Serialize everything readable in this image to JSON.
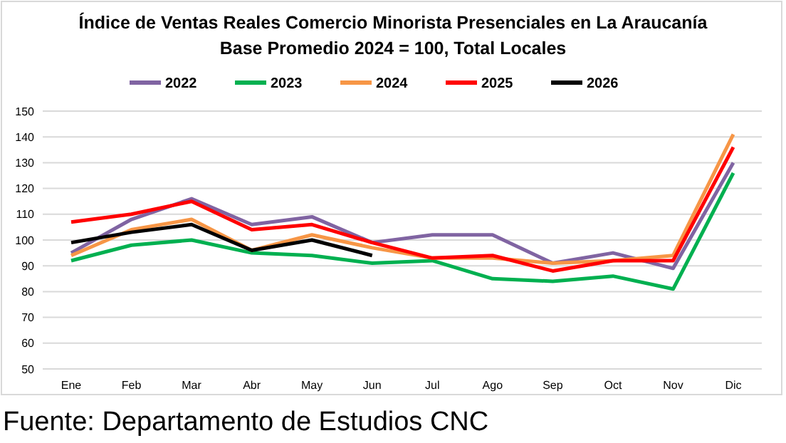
{
  "chart_data": {
    "type": "line",
    "title": "Índice de Ventas Reales Comercio Minorista Presenciales en La Araucanía",
    "subtitle": "Base Promedio 2024 = 100, Total Locales",
    "categories": [
      "Ene",
      "Feb",
      "Mar",
      "Abr",
      "May",
      "Jun",
      "Jul",
      "Ago",
      "Sep",
      "Oct",
      "Nov",
      "Dic"
    ],
    "series": [
      {
        "name": "2022",
        "color": "#8064a2",
        "values": [
          95,
          108,
          116,
          106,
          109,
          99,
          102,
          102,
          91,
          95,
          89,
          130
        ]
      },
      {
        "name": "2023",
        "color": "#00b050",
        "values": [
          92,
          98,
          100,
          95,
          94,
          91,
          92,
          85,
          84,
          86,
          81,
          126
        ]
      },
      {
        "name": "2024",
        "color": "#f79646",
        "values": [
          94,
          104,
          108,
          96,
          102,
          97,
          93,
          93,
          91,
          92,
          94,
          141
        ]
      },
      {
        "name": "2025",
        "color": "#ff0000",
        "values": [
          107,
          110,
          115,
          104,
          106,
          99,
          93,
          94,
          88,
          92,
          92,
          136
        ]
      },
      {
        "name": "2026",
        "color": "#000000",
        "values": [
          99,
          103,
          106,
          96,
          100,
          94,
          null,
          null,
          null,
          null,
          null,
          null
        ]
      }
    ],
    "ylim": [
      50,
      150
    ],
    "yticks": [
      50,
      60,
      70,
      80,
      90,
      100,
      110,
      120,
      130,
      140,
      150
    ],
    "grid": "y",
    "legend": "top",
    "line_style": "solid",
    "marker": "none",
    "annotations": [
      "Fuente: Departamento de Estudios CNC"
    ]
  }
}
